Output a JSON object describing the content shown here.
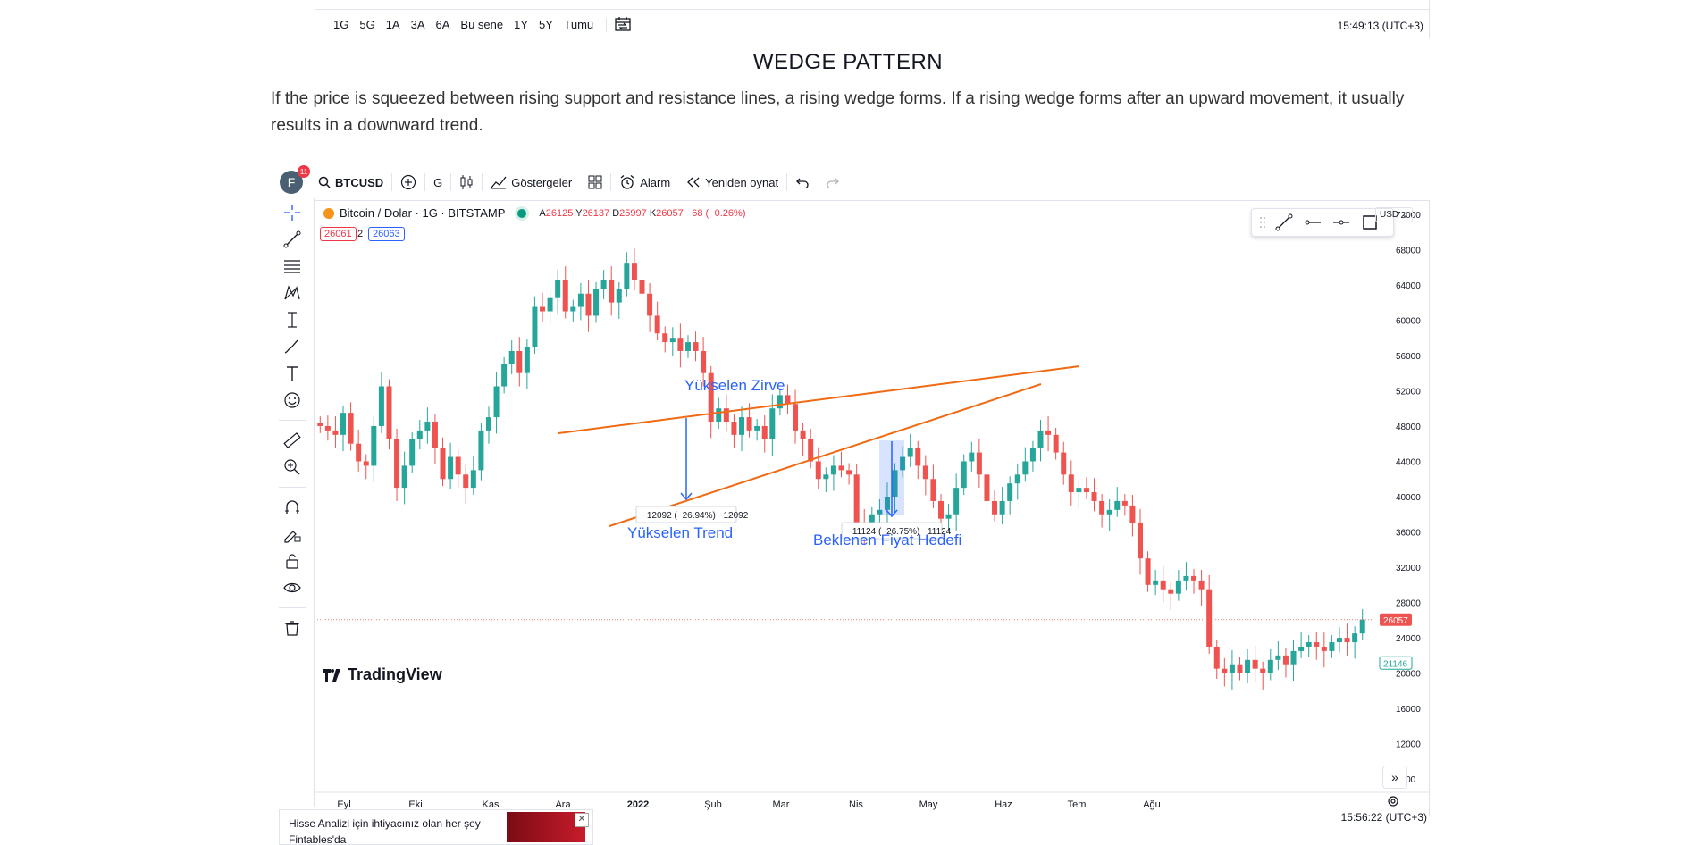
{
  "top_widget": {
    "ranges": [
      "1G",
      "5G",
      "1A",
      "3A",
      "6A",
      "Bu sene",
      "1Y",
      "5Y",
      "Tümü"
    ],
    "clock": "15:49:13 (UTC+3)"
  },
  "article": {
    "heading": "WEDGE PATTERN",
    "paragraph": "If the price is squeezed between rising support and resistance lines, a rising wedge forms. If a rising wedge forms after an upward movement, it usually results in a downward trend."
  },
  "chart_widget": {
    "toolbar": {
      "avatar_letter": "F",
      "notification_count": "11",
      "symbol": "BTCUSD",
      "interval": "G",
      "indicators": "Göstergeler",
      "alarm": "Alarm",
      "replay": "Yeniden oynat"
    },
    "legend": {
      "title": "Bitcoin / Dolar · 1G · BITSTAMP",
      "open_label": "A",
      "open": "26125",
      "high_label": "Y",
      "high": "26137",
      "low_label": "D",
      "low": "25997",
      "close_label": "K",
      "close": "26057",
      "change": "−68 (−0.26%)",
      "sell_price": "26061",
      "spread": "2",
      "buy_price": "26063"
    },
    "currency": "USD",
    "watermark": "TradingView",
    "clock": "15:56:22 (UTC+3)",
    "colors": {
      "up": "#26a69a",
      "down": "#ef5350",
      "drawing": "#f06a14",
      "annotation": "#2962ff"
    }
  },
  "chart_data": {
    "type": "candlestick",
    "x_ticks": [
      "Eyl",
      "Eki",
      "Kas",
      "Ara",
      "2022",
      "Şub",
      "Mar",
      "Nis",
      "May",
      "Haz",
      "Tem",
      "Ağu"
    ],
    "y_ticks": [
      72000,
      68000,
      64000,
      60000,
      56000,
      52000,
      48000,
      44000,
      40000,
      36000,
      32000,
      28000,
      24000,
      20000,
      16000,
      12000,
      8000
    ],
    "ylim": [
      6500,
      73500
    ],
    "last_price": 26057,
    "secondary_price": 21146,
    "closes": [
      48000,
      47500,
      47000,
      49500,
      46000,
      44000,
      43500,
      48000,
      52500,
      46500,
      41000,
      43500,
      46500,
      47500,
      48500,
      45500,
      42000,
      44500,
      42500,
      41000,
      43000,
      47500,
      49000,
      52500,
      55000,
      56500,
      54000,
      57000,
      61500,
      61000,
      62500,
      64500,
      61000,
      61500,
      63000,
      60500,
      63500,
      64500,
      62000,
      63500,
      66500,
      64500,
      63000,
      60500,
      58500,
      57500,
      58000,
      56500,
      57500,
      56500,
      54000,
      48500,
      50000,
      48500,
      47000,
      49000,
      47500,
      48000,
      46500,
      50000,
      51500,
      50500,
      47500,
      46500,
      44000,
      42000,
      42500,
      43500,
      43000,
      42500,
      37000,
      36500,
      38000,
      38500,
      40000,
      43000,
      44500,
      45500,
      43500,
      42000,
      39500,
      37500,
      38000,
      41000,
      44000,
      45000,
      42500,
      39500,
      38000,
      39500,
      41500,
      42500,
      44000,
      45500,
      47500,
      47000,
      45000,
      42500,
      40500,
      41000,
      40500,
      39500,
      38000,
      38500,
      39500,
      39000,
      37000,
      33000,
      30000,
      30500,
      29500,
      29000,
      30500,
      31000,
      30500,
      29500,
      23000,
      20500,
      20000,
      21000,
      20000,
      21500,
      20500,
      20000,
      21500,
      22000,
      21000,
      22500,
      23000,
      23500,
      23000,
      22500,
      23500,
      24000,
      23500,
      24500,
      26057
    ]
  },
  "annotations": {
    "rising_peak": "Yükselen Zirve",
    "rising_trend": "Yükselen Trend",
    "expected_target": "Beklenen Fiyat Hedefi",
    "measure1": "−12092 (−26.94%) −12092",
    "measure2": "−11124 (−26.75%) −11124"
  },
  "ad": {
    "text": "Hisse Analizi için ihtiyacınız olan her şey Fintables'da"
  }
}
